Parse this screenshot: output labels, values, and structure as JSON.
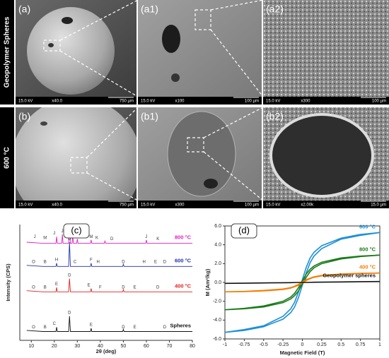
{
  "row_labels": [
    "Geopolymer Spheres",
    "600 °C"
  ],
  "panels": [
    {
      "label": "(a)",
      "kv": "15.0 kV",
      "mag": "x40.0",
      "scale": "750 µm"
    },
    {
      "label": "(a1)",
      "kv": "15.0 kV",
      "mag": "x100",
      "scale": "100 µm"
    },
    {
      "label": "(a2)",
      "kv": "15.0 kV",
      "mag": "x300",
      "scale": "100 µm"
    },
    {
      "label": "(b)",
      "kv": "15.0 kV",
      "mag": "x40.0",
      "scale": "750 µm"
    },
    {
      "label": "(b1)",
      "kv": "15.0 kV",
      "mag": "x300",
      "scale": "100 µm"
    },
    {
      "label": "(b2)",
      "kv": "15.0 kV",
      "mag": "x2.00k",
      "scale": "15.0 µm"
    }
  ],
  "chart_data": [
    {
      "type": "line",
      "label": "(c)",
      "xlabel": "2θ (deg)",
      "ylabel": "Intensity (CPS)",
      "xlim": [
        5,
        80
      ],
      "ylim": [
        0,
        105
      ],
      "xticks": [
        10,
        20,
        30,
        40,
        50,
        60,
        70,
        80
      ],
      "series": [
        {
          "name": "Spheres",
          "color": "#111111",
          "x": [
            8,
            15,
            20.7,
            21,
            21.3,
            26.2,
            26.6,
            27,
            35.7,
            36,
            36.3,
            49.7,
            50,
            50.3,
            60,
            70,
            80
          ],
          "values": [
            9,
            8,
            8,
            12,
            8,
            8,
            22,
            8,
            8,
            11,
            8,
            8,
            10,
            8,
            8,
            8,
            8
          ]
        },
        {
          "name": "400 °C",
          "color": "#e02020",
          "x": [
            8,
            15,
            20.7,
            21,
            21.3,
            26.2,
            26.6,
            27,
            35.7,
            36,
            36.3,
            49.7,
            50,
            50.3,
            60,
            70,
            80
          ],
          "values": [
            45,
            44,
            44,
            48,
            44,
            44,
            56,
            44,
            44,
            47,
            44,
            44,
            46,
            44,
            44,
            44,
            44
          ]
        },
        {
          "name": "600 °C",
          "color": "#2030b0",
          "x": [
            8,
            15,
            20.7,
            21,
            21.3,
            26.2,
            26.6,
            27,
            35.7,
            36,
            36.3,
            49.7,
            50,
            50.3,
            60,
            70,
            80
          ],
          "values": [
            68,
            67,
            67,
            70,
            67,
            67,
            89,
            67,
            67,
            70,
            67,
            67,
            69,
            67,
            67,
            67,
            67
          ]
        },
        {
          "name": "800 °C",
          "color": "#e020c0",
          "x": [
            8,
            15,
            20.7,
            21,
            21.3,
            23.2,
            23.5,
            23.8,
            26.2,
            26.6,
            27,
            27.7,
            28,
            28.3,
            29.7,
            30,
            30.3,
            35.7,
            36,
            36.3,
            41.7,
            42,
            42.3,
            59.7,
            60,
            60.3,
            70,
            80
          ],
          "values": [
            89,
            88,
            88,
            94,
            88,
            88,
            96,
            88,
            88,
            101,
            88,
            88,
            95,
            88,
            88,
            92,
            88,
            88,
            91,
            88,
            88,
            90,
            88,
            88,
            91,
            88,
            88,
            88
          ]
        }
      ],
      "annotations": [
        {
          "text": "J",
          "x": 11.5,
          "y": 94
        },
        {
          "text": "M",
          "x": 16,
          "y": 93
        },
        {
          "text": "J",
          "x": 20,
          "y": 97
        },
        {
          "text": "J",
          "x": 23.5,
          "y": 99
        },
        {
          "text": "J",
          "x": 26.6,
          "y": 104
        },
        {
          "text": "J",
          "x": 28.3,
          "y": 98
        },
        {
          "text": "L",
          "x": 33,
          "y": 94
        },
        {
          "text": "M",
          "x": 36,
          "y": 94
        },
        {
          "text": "K",
          "x": 38.5,
          "y": 93
        },
        {
          "text": "D",
          "x": 45,
          "y": 92
        },
        {
          "text": "J",
          "x": 60,
          "y": 94
        },
        {
          "text": "K",
          "x": 65,
          "y": 92
        },
        {
          "text": "O",
          "x": 11,
          "y": 71
        },
        {
          "text": "B",
          "x": 16,
          "y": 71
        },
        {
          "text": "H",
          "x": 21,
          "y": 73
        },
        {
          "text": "D",
          "x": 26.6,
          "y": 92
        },
        {
          "text": "C",
          "x": 29,
          "y": 71
        },
        {
          "text": "F",
          "x": 36,
          "y": 73
        },
        {
          "text": "H",
          "x": 39,
          "y": 71
        },
        {
          "text": "D",
          "x": 50,
          "y": 71
        },
        {
          "text": "H",
          "x": 59,
          "y": 71
        },
        {
          "text": "E",
          "x": 64,
          "y": 71
        },
        {
          "text": "D",
          "x": 68,
          "y": 71
        },
        {
          "text": "O",
          "x": 11,
          "y": 48
        },
        {
          "text": "B",
          "x": 16,
          "y": 48
        },
        {
          "text": "E",
          "x": 21,
          "y": 51
        },
        {
          "text": "D",
          "x": 26.6,
          "y": 59
        },
        {
          "text": "E",
          "x": 35,
          "y": 50
        },
        {
          "text": "F",
          "x": 40,
          "y": 48
        },
        {
          "text": "D",
          "x": 50,
          "y": 48
        },
        {
          "text": "E",
          "x": 55,
          "y": 48
        },
        {
          "text": "D",
          "x": 65,
          "y": 48
        },
        {
          "text": "O",
          "x": 11,
          "y": 12
        },
        {
          "text": "B",
          "x": 16,
          "y": 12
        },
        {
          "text": "C",
          "x": 20,
          "y": 15
        },
        {
          "text": "D",
          "x": 26.6,
          "y": 25
        },
        {
          "text": "E",
          "x": 36,
          "y": 14
        },
        {
          "text": "D",
          "x": 50,
          "y": 12
        },
        {
          "text": "E",
          "x": 55,
          "y": 12
        },
        {
          "text": "D",
          "x": 68,
          "y": 12
        }
      ]
    },
    {
      "type": "line",
      "label": "(d)",
      "xlabel": "Magnetic Field (T)",
      "ylabel": "M (Am²/kg)",
      "xlim": [
        -1,
        1
      ],
      "ylim": [
        -6,
        6
      ],
      "xticks": [
        -1,
        -0.75,
        -0.5,
        -0.25,
        0,
        0.25,
        0.5,
        0.75,
        1
      ],
      "yticks": [
        {
          "value": -6,
          "label": "-6.0"
        },
        {
          "value": -4,
          "label": "-4.0"
        },
        {
          "value": -2,
          "label": "-2.0"
        },
        {
          "value": 0,
          "label": "0.0"
        },
        {
          "value": 2,
          "label": "2.0"
        },
        {
          "value": 4,
          "label": "4.0"
        },
        {
          "value": 6,
          "label": "6.0"
        }
      ],
      "x": [
        -1,
        -0.75,
        -0.5,
        -0.25,
        -0.15,
        -0.1,
        -0.05,
        0,
        0.05,
        0.1,
        0.15,
        0.25,
        0.5,
        0.75,
        1,
        1,
        0.75,
        0.5,
        0.25,
        0.15,
        0.1,
        0.05,
        0,
        -0.05,
        -0.1,
        -0.15,
        -0.25,
        -0.5,
        -0.75,
        -1
      ],
      "series": [
        {
          "name": "600 °C",
          "color": "#1e90d8",
          "values": [
            -5.3,
            -5.0,
            -4.6,
            -3.6,
            -2.8,
            -2.1,
            -1.0,
            0.3,
            1.6,
            2.6,
            3.2,
            3.9,
            4.7,
            5.1,
            5.3,
            5.3,
            5.0,
            4.6,
            3.6,
            2.8,
            2.1,
            1.0,
            -0.3,
            -1.6,
            -2.6,
            -3.2,
            -3.9,
            -4.7,
            -5.1,
            -5.3
          ]
        },
        {
          "name": "800 °C",
          "color": "#1a7a1a",
          "values": [
            -2.9,
            -2.75,
            -2.5,
            -2.0,
            -1.55,
            -1.15,
            -0.55,
            0.15,
            0.9,
            1.4,
            1.75,
            2.15,
            2.6,
            2.8,
            2.9,
            2.9,
            2.75,
            2.5,
            2.0,
            1.55,
            1.15,
            0.55,
            -0.15,
            -0.9,
            -1.4,
            -1.75,
            -2.15,
            -2.6,
            -2.8,
            -2.9
          ]
        },
        {
          "name": "400 °C",
          "color": "#f57c00",
          "values": [
            -1.0,
            -0.95,
            -0.85,
            -0.7,
            -0.55,
            -0.4,
            -0.2,
            0.05,
            0.3,
            0.45,
            0.6,
            0.75,
            0.9,
            0.97,
            1.0,
            1.0,
            0.95,
            0.85,
            0.7,
            0.55,
            0.4,
            0.2,
            -0.05,
            -0.3,
            -0.45,
            -0.6,
            -0.75,
            -0.9,
            -0.97,
            -1.0
          ]
        },
        {
          "name": "Geopolymer spheres",
          "color": "#111111",
          "values": [
            -0.1,
            -0.08,
            -0.05,
            -0.03,
            -0.02,
            -0.01,
            0,
            0,
            0,
            0.01,
            0.02,
            0.03,
            0.05,
            0.08,
            0.1,
            0.1,
            0.08,
            0.05,
            0.03,
            0.02,
            0.01,
            0,
            0,
            0,
            -0.01,
            -0.02,
            -0.03,
            -0.05,
            -0.08,
            -0.1
          ]
        }
      ]
    }
  ]
}
